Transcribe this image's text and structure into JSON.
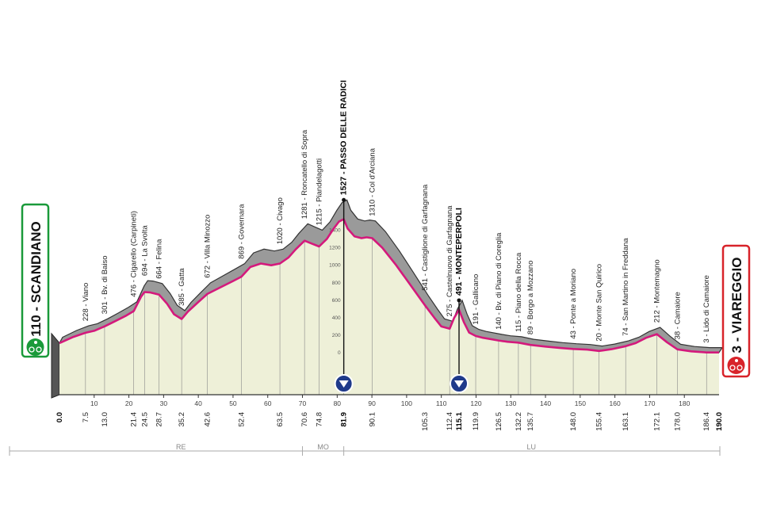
{
  "chart_data": {
    "type": "area",
    "xlim": [
      0,
      190
    ],
    "ylim": [
      0,
      1600
    ],
    "x_ticks": [
      10,
      20,
      30,
      40,
      50,
      60,
      70,
      80,
      90,
      100,
      110,
      120,
      130,
      140,
      150,
      160,
      170,
      180
    ],
    "alt_ticks": [
      0,
      200,
      400,
      600,
      800,
      1000,
      1200,
      1400
    ],
    "profile": [
      {
        "x": 0.0,
        "y": 110
      },
      {
        "x": 4,
        "y": 180
      },
      {
        "x": 7.5,
        "y": 228
      },
      {
        "x": 10,
        "y": 250
      },
      {
        "x": 13.0,
        "y": 301
      },
      {
        "x": 16,
        "y": 360
      },
      {
        "x": 19,
        "y": 420
      },
      {
        "x": 21.4,
        "y": 476
      },
      {
        "x": 23.5,
        "y": 640
      },
      {
        "x": 24.5,
        "y": 694
      },
      {
        "x": 26,
        "y": 690
      },
      {
        "x": 28.7,
        "y": 664
      },
      {
        "x": 31,
        "y": 560
      },
      {
        "x": 33,
        "y": 440
      },
      {
        "x": 35.2,
        "y": 385
      },
      {
        "x": 37,
        "y": 470
      },
      {
        "x": 40,
        "y": 580
      },
      {
        "x": 42.6,
        "y": 672
      },
      {
        "x": 46,
        "y": 740
      },
      {
        "x": 50,
        "y": 820
      },
      {
        "x": 52.4,
        "y": 869
      },
      {
        "x": 55,
        "y": 980
      },
      {
        "x": 58,
        "y": 1020
      },
      {
        "x": 61,
        "y": 1000
      },
      {
        "x": 63.5,
        "y": 1020
      },
      {
        "x": 66,
        "y": 1090
      },
      {
        "x": 68,
        "y": 1180
      },
      {
        "x": 70.6,
        "y": 1281
      },
      {
        "x": 72.5,
        "y": 1250
      },
      {
        "x": 74.8,
        "y": 1215
      },
      {
        "x": 77,
        "y": 1300
      },
      {
        "x": 79,
        "y": 1420
      },
      {
        "x": 80.5,
        "y": 1500
      },
      {
        "x": 81.9,
        "y": 1527
      },
      {
        "x": 83,
        "y": 1420
      },
      {
        "x": 85,
        "y": 1330
      },
      {
        "x": 87,
        "y": 1310
      },
      {
        "x": 88.5,
        "y": 1320
      },
      {
        "x": 90.1,
        "y": 1310
      },
      {
        "x": 93,
        "y": 1200
      },
      {
        "x": 97,
        "y": 1000
      },
      {
        "x": 101,
        "y": 780
      },
      {
        "x": 105.3,
        "y": 541
      },
      {
        "x": 108,
        "y": 400
      },
      {
        "x": 110,
        "y": 300
      },
      {
        "x": 112.4,
        "y": 275
      },
      {
        "x": 113.7,
        "y": 400
      },
      {
        "x": 115.1,
        "y": 491
      },
      {
        "x": 116.5,
        "y": 350
      },
      {
        "x": 118,
        "y": 230
      },
      {
        "x": 119.9,
        "y": 191
      },
      {
        "x": 122,
        "y": 170
      },
      {
        "x": 126.5,
        "y": 140
      },
      {
        "x": 129,
        "y": 125
      },
      {
        "x": 132.2,
        "y": 115
      },
      {
        "x": 135.7,
        "y": 89
      },
      {
        "x": 140,
        "y": 70
      },
      {
        "x": 144,
        "y": 55
      },
      {
        "x": 148.0,
        "y": 43
      },
      {
        "x": 152,
        "y": 35
      },
      {
        "x": 155.4,
        "y": 20
      },
      {
        "x": 159,
        "y": 40
      },
      {
        "x": 163.1,
        "y": 74
      },
      {
        "x": 166,
        "y": 110
      },
      {
        "x": 169,
        "y": 170
      },
      {
        "x": 172.1,
        "y": 212
      },
      {
        "x": 175,
        "y": 120
      },
      {
        "x": 178.0,
        "y": 38
      },
      {
        "x": 182,
        "y": 15
      },
      {
        "x": 186.4,
        "y": 3
      },
      {
        "x": 190.0,
        "y": 3
      }
    ],
    "waypoints": [
      {
        "km": "7.5",
        "x": 7.5,
        "alt": 228,
        "label": "228 - Viano",
        "bold": false
      },
      {
        "km": "13.0",
        "x": 13.0,
        "alt": 301,
        "label": "301 - Bv. di Baiso",
        "bold": false
      },
      {
        "km": "21.4",
        "x": 21.4,
        "alt": 476,
        "label": "476 - Cigarello (Carpineti)",
        "bold": false
      },
      {
        "km": "24.5",
        "x": 24.5,
        "alt": 694,
        "label": "694 - La Svolta",
        "bold": false
      },
      {
        "km": "28.7",
        "x": 28.7,
        "alt": 664,
        "label": "664 - Felina",
        "bold": false
      },
      {
        "km": "35.2",
        "x": 35.2,
        "alt": 385,
        "label": "385 - Gatta",
        "bold": false
      },
      {
        "km": "42.6",
        "x": 42.6,
        "alt": 672,
        "label": "672 - Villa Minozzo",
        "bold": false
      },
      {
        "km": "52.4",
        "x": 52.4,
        "alt": 869,
        "label": "869 - Governara",
        "bold": false
      },
      {
        "km": "63.5",
        "x": 63.5,
        "alt": 1020,
        "label": "1020 - Civago",
        "bold": false
      },
      {
        "km": "70.6",
        "x": 70.6,
        "alt": 1281,
        "label": "1281 - Roncatello di Sopra",
        "bold": false
      },
      {
        "km": "74.8",
        "x": 74.8,
        "alt": 1215,
        "label": "1215 - Piandelagotti",
        "bold": false
      },
      {
        "km": "81.9",
        "x": 81.9,
        "alt": 1527,
        "label": "1527 - PASSO DELLE RADICI",
        "bold": true
      },
      {
        "km": "90.1",
        "x": 90.1,
        "alt": 1310,
        "label": "1310 - Col d'Arciana",
        "bold": false
      },
      {
        "km": "105.3",
        "x": 105.3,
        "alt": 541,
        "label": "541 - Castiglione di Garfagnana",
        "bold": false
      },
      {
        "km": "112.4",
        "x": 112.4,
        "alt": 275,
        "label": "275 - Castelnuovo di Garfagnana",
        "bold": false
      },
      {
        "km": "115.1",
        "x": 115.1,
        "alt": 491,
        "label": "491 - MONTEPERPOLI",
        "bold": true
      },
      {
        "km": "119.9",
        "x": 119.9,
        "alt": 191,
        "label": "191 - Gallicano",
        "bold": false
      },
      {
        "km": "126.5",
        "x": 126.5,
        "alt": 140,
        "label": "140 - Bv. di Piano di Coreglia",
        "bold": false
      },
      {
        "km": "132.2",
        "x": 132.2,
        "alt": 115,
        "label": "115 - Piano della Rocca",
        "bold": false
      },
      {
        "km": "135.7",
        "x": 135.7,
        "alt": 89,
        "label": "89 - Borgo a Mozzano",
        "bold": false
      },
      {
        "km": "148.0",
        "x": 148.0,
        "alt": 43,
        "label": "43 - Ponte a Moriano",
        "bold": false
      },
      {
        "km": "155.4",
        "x": 155.4,
        "alt": 20,
        "label": "20 - Monte San Quirico",
        "bold": false
      },
      {
        "km": "163.1",
        "x": 163.1,
        "alt": 74,
        "label": "74 - San Martino in Freddana",
        "bold": false
      },
      {
        "km": "172.1",
        "x": 172.1,
        "alt": 212,
        "label": "212 - Montemagno",
        "bold": false
      },
      {
        "km": "178.0",
        "x": 178.0,
        "alt": 38,
        "label": "38 - Camaiore",
        "bold": false
      },
      {
        "km": "186.4",
        "x": 186.4,
        "alt": 3,
        "label": "3 - Lido di Camaiore",
        "bold": false
      }
    ],
    "start_km": "0.0",
    "finish_km": "190.0",
    "start_label": "110 - SCANDIANO",
    "finish_label": "3 - VIAREGGIO",
    "gpm": [
      {
        "x": 81.9,
        "km": "81.9"
      },
      {
        "x": 115.1,
        "km": "115.1"
      }
    ],
    "regions": [
      {
        "name": "RE",
        "from": 0,
        "to": 70
      },
      {
        "name": "MO",
        "from": 70,
        "to": 81.9
      },
      {
        "name": "LU",
        "from": 81.9,
        "to": 190
      }
    ],
    "colors": {
      "road": "#d4197c",
      "fill": "#eef0d8",
      "mountain": "#9a9a9a",
      "start": "#1a9a3a",
      "finish": "#d8232a",
      "gpm": "#1f3a8a"
    }
  }
}
